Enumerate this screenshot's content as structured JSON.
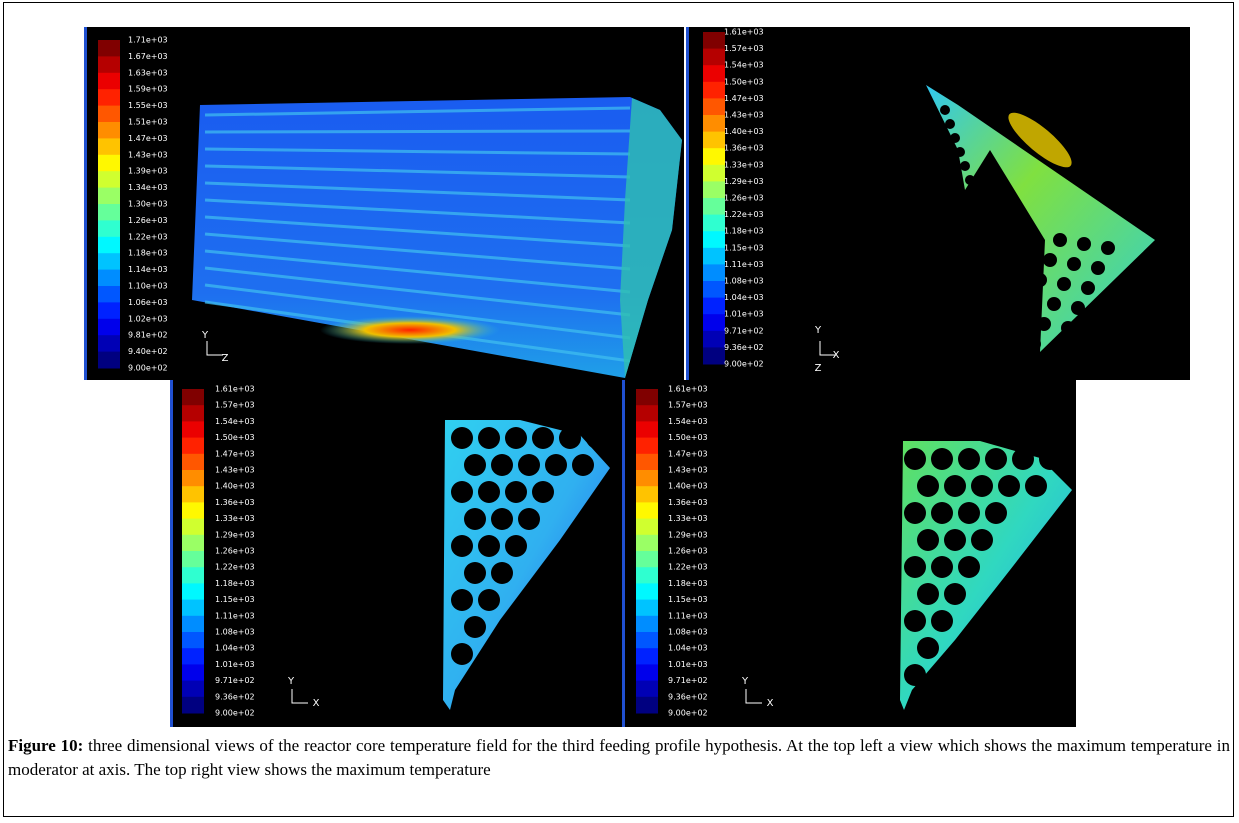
{
  "panels": [
    {
      "colorbar_labels": [
        "1.71e+03",
        "1.67e+03",
        "1.63e+03",
        "1.59e+03",
        "1.55e+03",
        "1.51e+03",
        "1.47e+03",
        "1.43e+03",
        "1.39e+03",
        "1.34e+03",
        "1.30e+03",
        "1.26e+03",
        "1.22e+03",
        "1.18e+03",
        "1.14e+03",
        "1.10e+03",
        "1.06e+03",
        "1.02e+03",
        "9.81e+02",
        "9.40e+02",
        "9.00e+02"
      ],
      "axis_labels": [
        "Y",
        "Z"
      ]
    },
    {
      "colorbar_labels": [
        "1.61e+03",
        "1.57e+03",
        "1.54e+03",
        "1.50e+03",
        "1.47e+03",
        "1.43e+03",
        "1.40e+03",
        "1.36e+03",
        "1.33e+03",
        "1.29e+03",
        "1.26e+03",
        "1.22e+03",
        "1.18e+03",
        "1.15e+03",
        "1.11e+03",
        "1.08e+03",
        "1.04e+03",
        "1.01e+03",
        "9.71e+02",
        "9.36e+02",
        "9.00e+02"
      ],
      "axis_labels": [
        "Y",
        "X",
        "Z"
      ]
    },
    {
      "colorbar_labels": [
        "1.61e+03",
        "1.57e+03",
        "1.54e+03",
        "1.50e+03",
        "1.47e+03",
        "1.43e+03",
        "1.40e+03",
        "1.36e+03",
        "1.33e+03",
        "1.29e+03",
        "1.26e+03",
        "1.22e+03",
        "1.18e+03",
        "1.15e+03",
        "1.11e+03",
        "1.08e+03",
        "1.04e+03",
        "1.01e+03",
        "9.71e+02",
        "9.36e+02",
        "9.00e+02"
      ],
      "axis_labels": [
        "Y",
        "X"
      ]
    },
    {
      "colorbar_labels": [
        "1.61e+03",
        "1.57e+03",
        "1.54e+03",
        "1.50e+03",
        "1.47e+03",
        "1.43e+03",
        "1.40e+03",
        "1.36e+03",
        "1.33e+03",
        "1.29e+03",
        "1.26e+03",
        "1.22e+03",
        "1.18e+03",
        "1.15e+03",
        "1.11e+03",
        "1.08e+03",
        "1.04e+03",
        "1.01e+03",
        "9.71e+02",
        "9.36e+02",
        "9.00e+02"
      ],
      "axis_labels": [
        "Y",
        "X"
      ]
    }
  ],
  "caption": {
    "label": "Figure 10:",
    "text": "three dimensional views of the reactor core temperature field for the third feeding profile hypothesis. At the top left a view which shows the maximum temperature in moderator at axis. The top right view shows the maximum temperature"
  }
}
